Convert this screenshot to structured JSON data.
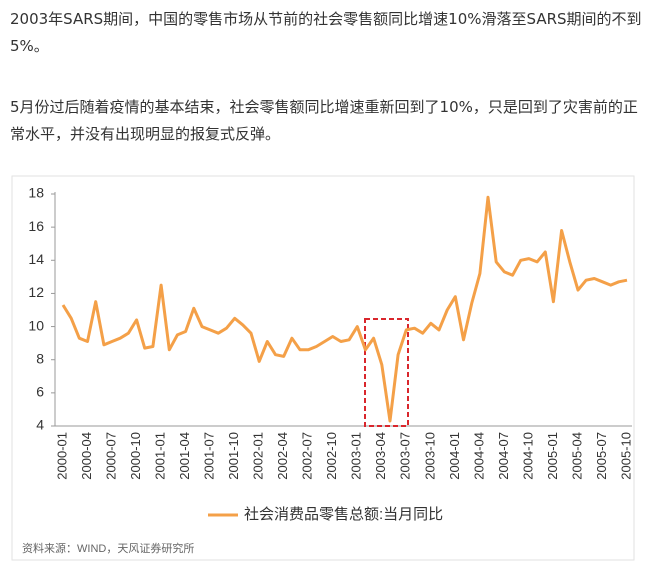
{
  "paragraphs": [
    "2003年SARS期间，中国的零售市场从节前的社会零售额同比增速10%滑落至SARS期间的不到5%。",
    "5月份过后随着疫情的基本结束，社会零售额同比增速重新回到了10%，只是回到了灾害前的正常水平，并没有出现明显的报复式反弹。"
  ],
  "chart_data": {
    "type": "line",
    "categories": [
      "2000-01",
      null,
      null,
      "2000-04",
      null,
      null,
      "2000-07",
      null,
      null,
      "2000-10",
      null,
      null,
      "2001-01",
      null,
      null,
      "2001-04",
      null,
      null,
      "2001-07",
      null,
      null,
      "2001-10",
      null,
      null,
      "2002-01",
      null,
      null,
      "2002-04",
      null,
      null,
      "2002-07",
      null,
      null,
      "2002-10",
      null,
      null,
      "2003-01",
      null,
      null,
      "2003-04",
      null,
      null,
      "2003-07",
      null,
      null,
      "2003-10",
      null,
      null,
      "2004-01",
      null,
      null,
      "2004-04",
      null,
      null,
      "2004-07",
      null,
      null,
      "2004-10",
      null,
      null,
      "2005-01",
      null,
      null,
      "2005-04",
      null,
      null,
      "2005-07",
      null,
      null,
      "2005-10"
    ],
    "series": [
      {
        "name": "社会消费品零售总额:当月同比",
        "color": "#f4a048",
        "values": [
          11.3,
          10.5,
          9.3,
          9.1,
          11.5,
          8.9,
          9.1,
          9.3,
          9.6,
          10.4,
          8.7,
          8.8,
          12.5,
          8.6,
          9.5,
          9.7,
          11.1,
          10.0,
          9.8,
          9.6,
          9.9,
          10.5,
          10.1,
          9.6,
          7.9,
          9.1,
          8.3,
          8.2,
          9.3,
          8.6,
          8.6,
          8.8,
          9.1,
          9.4,
          9.1,
          9.2,
          10.0,
          8.6,
          9.3,
          7.7,
          4.3,
          8.3,
          9.8,
          9.9,
          9.6,
          10.2,
          9.8,
          11.0,
          11.8,
          9.2,
          11.4,
          13.2,
          17.8,
          13.9,
          13.3,
          13.1,
          14.0,
          14.1,
          13.9,
          14.5,
          11.5,
          15.8,
          13.9,
          12.2,
          12.8,
          12.9,
          12.7,
          12.5,
          12.7,
          12.8
        ]
      }
    ],
    "ylim": [
      4,
      18
    ],
    "yticks": [
      4,
      6,
      8,
      10,
      12,
      14,
      16,
      18
    ],
    "grid": false,
    "source": "资料来源：WIND，天风证券研究所"
  }
}
